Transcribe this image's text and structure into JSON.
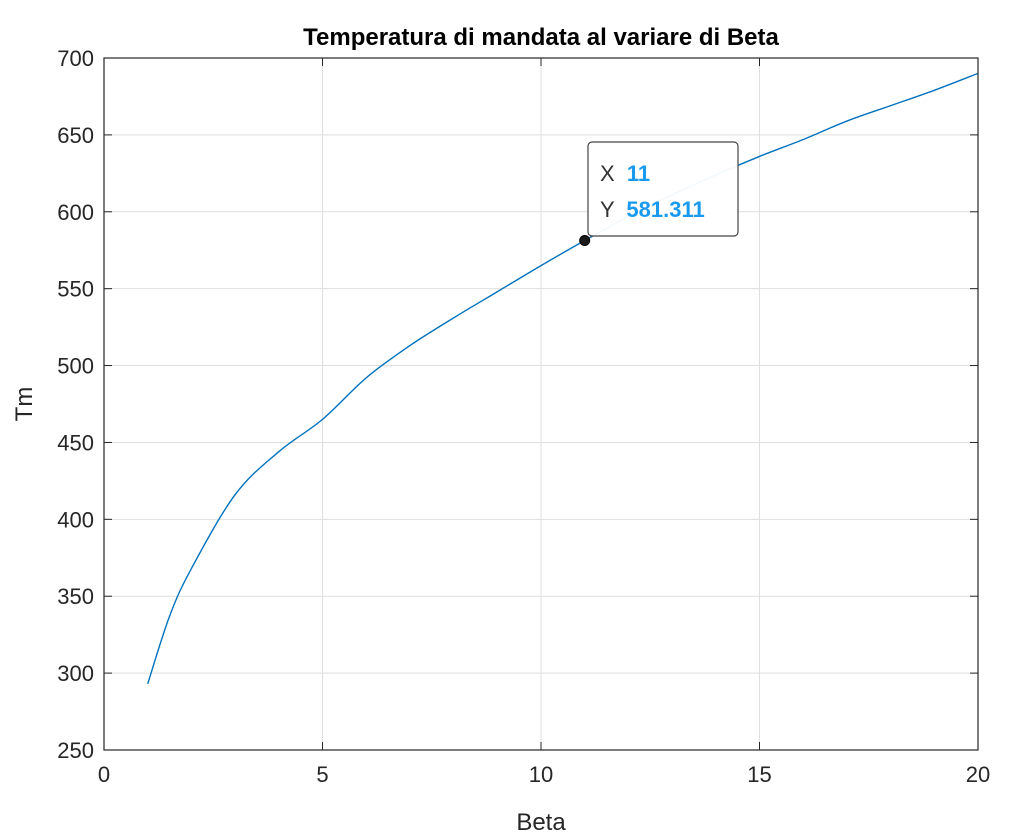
{
  "chart_data": {
    "type": "line",
    "title": "Temperatura di mandata al variare di Beta",
    "xlabel": "Beta",
    "ylabel": "Tm",
    "xlim": [
      0,
      20
    ],
    "ylim": [
      250,
      700
    ],
    "xticks": [
      0,
      5,
      10,
      15,
      20
    ],
    "yticks": [
      250,
      300,
      350,
      400,
      450,
      500,
      550,
      600,
      650,
      700
    ],
    "grid": true,
    "series": [
      {
        "color": "#0072BD",
        "x": [
          1,
          1.5,
          2,
          3,
          4,
          5,
          6,
          7,
          8,
          9,
          10,
          11,
          12,
          13,
          14,
          15,
          16,
          17,
          18,
          19,
          20
        ],
        "y": [
          293,
          337,
          368,
          416,
          444,
          465,
          492,
          513,
          531,
          548,
          565,
          581.311,
          597,
          611,
          624,
          636,
          647,
          659,
          669,
          679,
          690
        ]
      }
    ],
    "datatip": {
      "x_label": "X",
      "x_value": "11",
      "y_label": "Y",
      "y_value": "581.311",
      "x": 11,
      "y": 581.311,
      "value_color": "#1A9AEF"
    }
  }
}
